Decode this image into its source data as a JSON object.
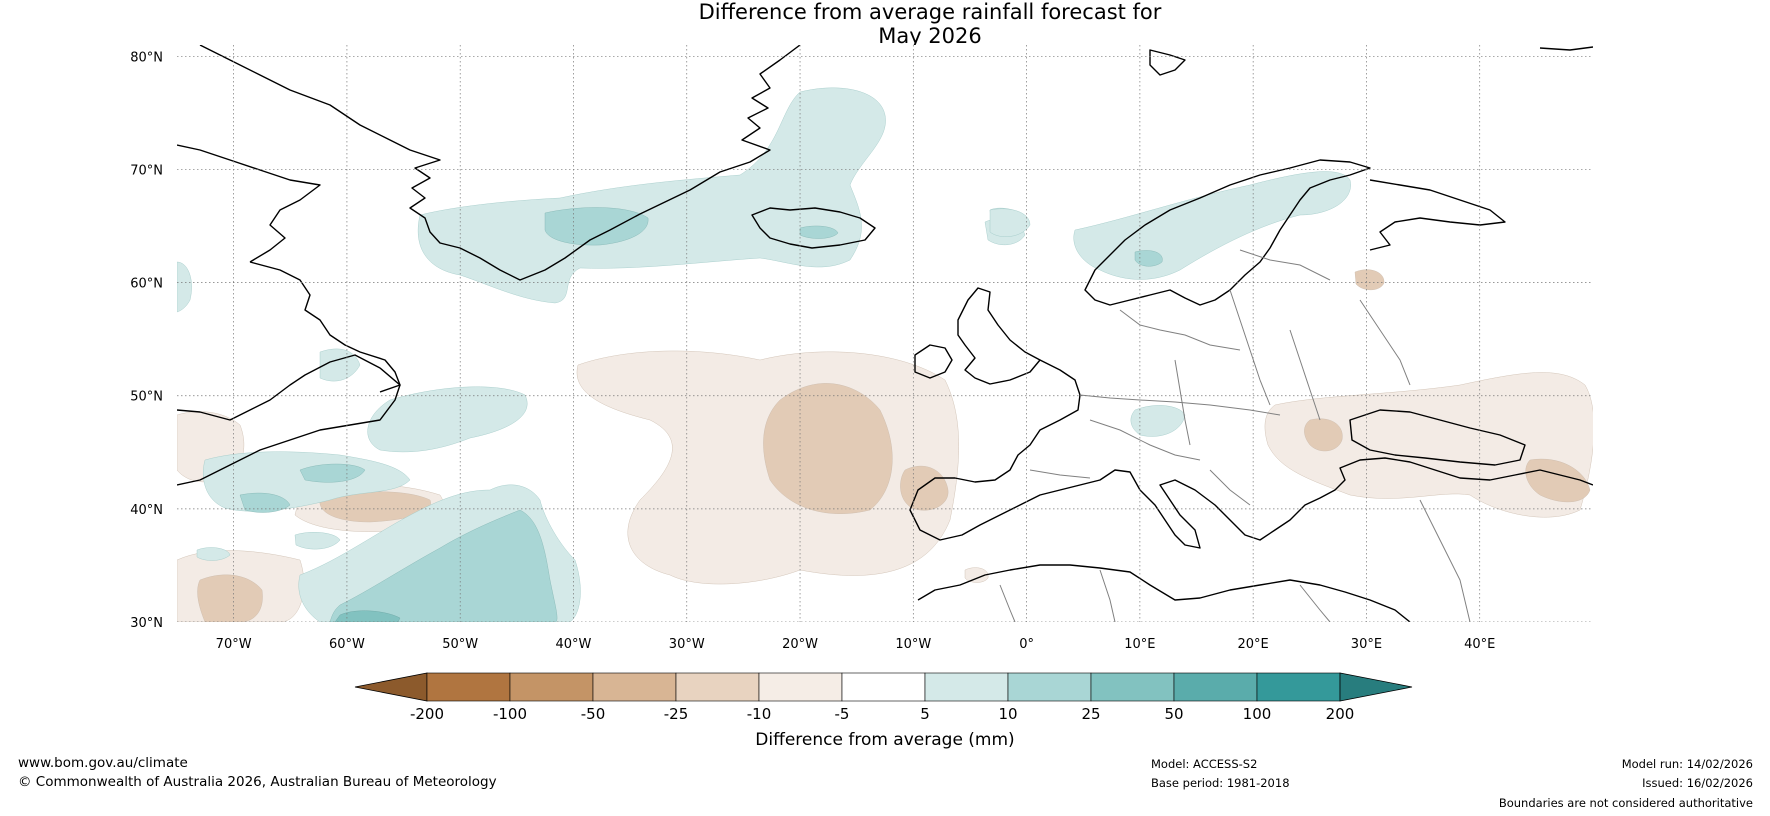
{
  "title": {
    "line1": "Difference from average rainfall forecast for",
    "line2": "May 2026"
  },
  "map": {
    "lat_labels": [
      "80°N",
      "70°N",
      "60°N",
      "50°N",
      "40°N",
      "30°N"
    ],
    "lon_labels": [
      "70°W",
      "60°W",
      "50°W",
      "40°W",
      "30°W",
      "20°W",
      "10°W",
      "0°",
      "10°E",
      "20°E",
      "30°E",
      "40°E"
    ],
    "lat_values": [
      80,
      70,
      60,
      50,
      40,
      30
    ],
    "lon_values": [
      -70,
      -60,
      -50,
      -40,
      -30,
      -20,
      -10,
      0,
      10,
      20,
      30,
      40
    ],
    "extent": {
      "lon_min": -75,
      "lon_max": 50,
      "lat_min": 30,
      "lat_max": 81
    }
  },
  "legend": {
    "tick_labels": [
      "-200",
      "-100",
      "-50",
      "-25",
      "-10",
      "-5",
      "5",
      "10",
      "25",
      "50",
      "100",
      "200"
    ],
    "colors": [
      "#8c5a2c",
      "#b07540",
      "#c49466",
      "#d8b594",
      "#e8d3c0",
      "#f5ede6",
      "#ffffff",
      "#d4e9e8",
      "#a9d6d5",
      "#82c2c0",
      "#5aacab",
      "#34999a",
      "#287d7e"
    ],
    "label": "Difference from average (mm)"
  },
  "colors": {
    "dry1": "#f3ebe5",
    "dry2": "#e2cbb6",
    "wet1": "#d4e9e8",
    "wet2": "#a9d6d5",
    "wet3": "#82c2c0",
    "coast": "#000000",
    "border": "#808080",
    "grid": "#777777"
  },
  "footer": {
    "website": "www.bom.gov.au/climate",
    "copyright": "© Commonwealth of Australia 2026, Australian Bureau of Meteorology",
    "model": "Model: ACCESS-S2",
    "base_period": "Base period: 1981-2018",
    "model_run": "Model run: 14/02/2026",
    "issued": "Issued: 16/02/2026",
    "disclaimer": "Boundaries are not considered authoritative"
  }
}
